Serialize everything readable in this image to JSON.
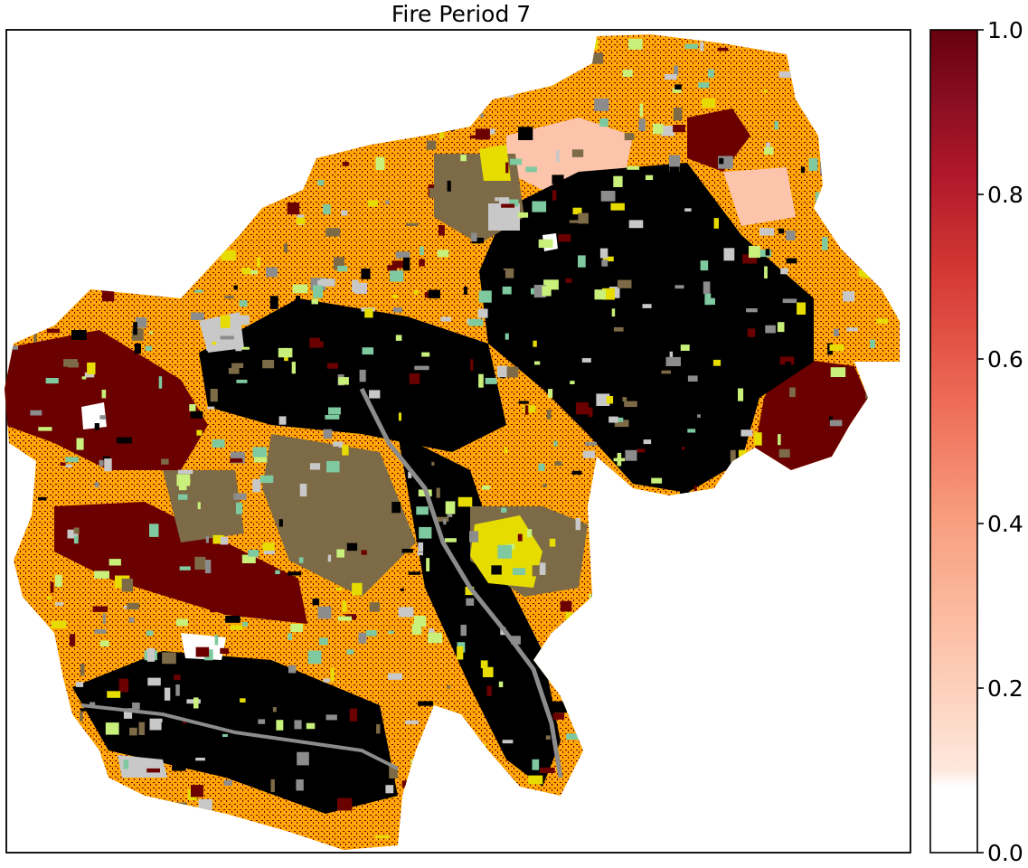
{
  "chart_data": {
    "type": "heatmap",
    "title": "Fire Period 7",
    "colormap": "Reds",
    "colorbar": {
      "range": [
        0.0,
        1.0
      ],
      "ticks": [
        0.0,
        0.2,
        0.4,
        0.6,
        0.8,
        1.0
      ],
      "tick_labels": [
        "0.0",
        "0.2",
        "0.4",
        "0.6",
        "0.8",
        "1.0"
      ],
      "stops": [
        {
          "value": 0.0,
          "color": "#ffffff"
        },
        {
          "value": 0.08,
          "color": "#ffffff"
        },
        {
          "value": 0.1,
          "color": "#fee8dd"
        },
        {
          "value": 0.25,
          "color": "#fcc4ab"
        },
        {
          "value": 0.4,
          "color": "#f89f80"
        },
        {
          "value": 0.55,
          "color": "#ee6b57"
        },
        {
          "value": 0.7,
          "color": "#d63a34"
        },
        {
          "value": 0.82,
          "color": "#b2192b"
        },
        {
          "value": 0.92,
          "color": "#870d20"
        },
        {
          "value": 1.0,
          "color": "#67000d"
        }
      ]
    },
    "overlay_colors": {
      "unburned_forest": "#000000",
      "shrubland": "#7d6b47",
      "urban": "#8c8c8c",
      "bare": "#c8c8c8",
      "grass_orange": "#ffa500",
      "grass_yellow": "#e6dc00",
      "riparian": "#7ec9a0",
      "light_green": "#c8f07a",
      "purple": "#9b59d0",
      "burned_high": "#6b0000",
      "burned_low": "#fcc4ab"
    },
    "grid": false,
    "axes_ticks_visible": false
  }
}
